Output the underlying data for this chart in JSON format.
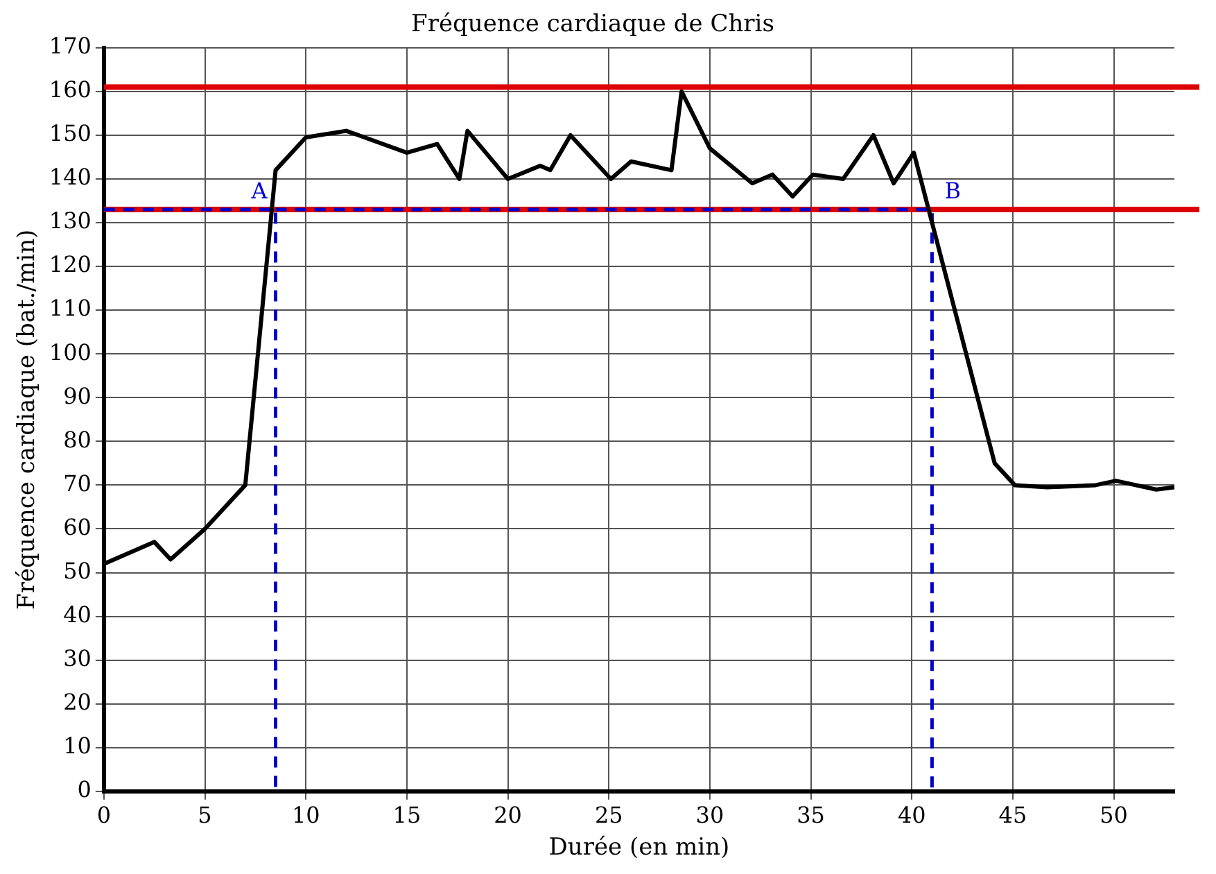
{
  "chart_data": {
    "type": "line",
    "title": "Fréquence cardiaque de Chris",
    "xlabel": "Durée (en min)",
    "ylabel": "Fréquence cardiaque (bat./min)",
    "series": [
      {
        "color": "#000000",
        "marker": "none",
        "line_style": "solid",
        "x": [
          0,
          2.5,
          3.3,
          5,
          7,
          8.5,
          10,
          12,
          15,
          16.5,
          17.6,
          18,
          20,
          21.6,
          22.1,
          23.1,
          25.1,
          26.1,
          28.1,
          28.6,
          30,
          32.1,
          33.1,
          34.1,
          35.1,
          36.6,
          38.1,
          39.1,
          40.1,
          44.1,
          45.1,
          46.7,
          49.1,
          50.1,
          52.1,
          53
        ],
        "values": [
          52,
          57,
          53,
          60,
          70,
          142,
          149.5,
          151,
          146,
          148,
          140,
          151,
          140,
          143,
          142,
          150,
          140,
          144,
          142,
          160,
          147,
          139,
          141,
          136,
          141,
          140,
          150,
          139,
          146,
          75,
          70,
          69.5,
          70,
          71,
          69,
          69.5
        ]
      },
      {
        "type": "line",
        "color": "#0000cc",
        "marker": "none",
        "line_style": "dashed",
        "x": [
          0,
          8.5,
          8.5
        ],
        "values": [
          133,
          133,
          0
        ]
      },
      {
        "type": "line",
        "color": "#0000cc",
        "marker": "none",
        "line_style": "dashed",
        "x": [
          8.5,
          41,
          41
        ],
        "values": [
          133,
          133,
          0
        ]
      }
    ],
    "xlim": [
      0,
      53
    ],
    "xticks": [
      0,
      5,
      10,
      15,
      20,
      25,
      30,
      35,
      40,
      45,
      50
    ],
    "ylim": [
      0,
      170
    ],
    "yticks": [
      0,
      10,
      20,
      30,
      40,
      50,
      60,
      70,
      80,
      90,
      100,
      110,
      120,
      130,
      140,
      150,
      160,
      170
    ],
    "grid": true,
    "legend": false,
    "ref_lines": [
      {
        "axis": "y",
        "value": 161,
        "color": "#dd0000"
      },
      {
        "axis": "y",
        "value": 133,
        "color": "#dd0000"
      }
    ],
    "annotations": [
      {
        "text": "A",
        "x": 8.5,
        "y": 133
      },
      {
        "text": "B",
        "x": 41,
        "y": 133
      }
    ]
  }
}
